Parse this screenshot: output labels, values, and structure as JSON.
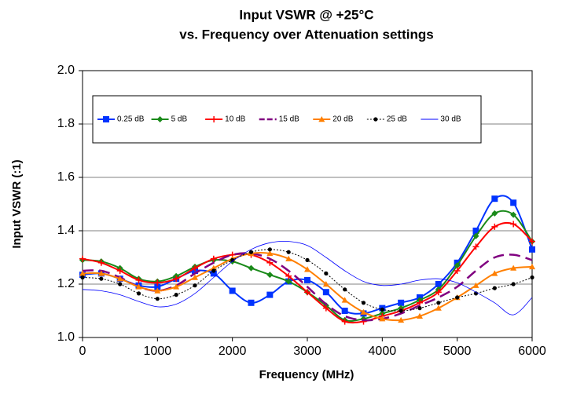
{
  "chart_data": {
    "type": "line",
    "title": "Input VSWR @ +25°C",
    "subtitle": "vs. Frequency over Attenuation settings",
    "x_label": "Frequency (MHz)",
    "y_label": "Input VSWR (:1)",
    "x": [
      0,
      250,
      500,
      750,
      1000,
      1250,
      1500,
      1750,
      2000,
      2250,
      2500,
      2750,
      3000,
      3250,
      3500,
      3750,
      4000,
      4250,
      4500,
      4750,
      5000,
      5250,
      5500,
      5750,
      6000
    ],
    "xlim": [
      0,
      6000
    ],
    "xticks": [
      0,
      1000,
      2000,
      3000,
      4000,
      5000,
      6000
    ],
    "ylim": [
      1,
      2
    ],
    "yticks": [
      {
        "value": 1,
        "label": "1.0"
      },
      {
        "value": 1.2,
        "label": "1.2"
      },
      {
        "value": 1.4,
        "label": "1.4"
      },
      {
        "value": 1.6,
        "label": "1.6"
      },
      {
        "value": 1.8,
        "label": "1.8"
      },
      {
        "value": 2,
        "label": "2.0"
      }
    ],
    "grid": true,
    "legend": "top-left",
    "series": [
      {
        "name": "0.25 dB",
        "color": "#0033ff",
        "marker": "square",
        "dash": "solid",
        "width": 2,
        "values": [
          1.235,
          1.24,
          1.22,
          1.195,
          1.19,
          1.22,
          1.25,
          1.24,
          1.175,
          1.13,
          1.16,
          1.21,
          1.215,
          1.17,
          1.1,
          1.09,
          1.11,
          1.13,
          1.15,
          1.2,
          1.28,
          1.4,
          1.52,
          1.505,
          1.33
        ]
      },
      {
        "name": "5 dB",
        "color": "#1a8a1a",
        "marker": "diamond",
        "dash": "solid",
        "width": 2,
        "values": [
          1.29,
          1.285,
          1.26,
          1.22,
          1.21,
          1.23,
          1.265,
          1.29,
          1.285,
          1.26,
          1.235,
          1.21,
          1.17,
          1.12,
          1.065,
          1.07,
          1.09,
          1.11,
          1.14,
          1.18,
          1.27,
          1.38,
          1.465,
          1.46,
          1.36
        ]
      },
      {
        "name": "10 dB",
        "color": "#ff0000",
        "marker": "plus",
        "dash": "solid",
        "width": 2,
        "values": [
          1.295,
          1.28,
          1.25,
          1.215,
          1.205,
          1.22,
          1.26,
          1.295,
          1.31,
          1.31,
          1.28,
          1.23,
          1.17,
          1.11,
          1.06,
          1.06,
          1.08,
          1.1,
          1.13,
          1.17,
          1.25,
          1.34,
          1.415,
          1.425,
          1.36
        ]
      },
      {
        "name": "15 dB",
        "color": "#800080",
        "marker": "none",
        "dash": "long",
        "width": 2.5,
        "values": [
          1.25,
          1.25,
          1.225,
          1.19,
          1.175,
          1.195,
          1.24,
          1.28,
          1.31,
          1.315,
          1.295,
          1.25,
          1.19,
          1.125,
          1.08,
          1.065,
          1.07,
          1.09,
          1.12,
          1.15,
          1.19,
          1.25,
          1.3,
          1.31,
          1.29
        ]
      },
      {
        "name": "20 dB",
        "color": "#ff7f00",
        "marker": "triangle",
        "dash": "solid",
        "width": 2,
        "values": [
          1.24,
          1.24,
          1.22,
          1.19,
          1.175,
          1.19,
          1.225,
          1.26,
          1.295,
          1.315,
          1.315,
          1.295,
          1.255,
          1.2,
          1.14,
          1.095,
          1.07,
          1.065,
          1.08,
          1.11,
          1.15,
          1.195,
          1.24,
          1.26,
          1.265
        ]
      },
      {
        "name": "25 dB",
        "color": "#000000",
        "marker": "circle",
        "dash": "dotted",
        "width": 1,
        "values": [
          1.225,
          1.22,
          1.2,
          1.165,
          1.145,
          1.16,
          1.195,
          1.25,
          1.29,
          1.32,
          1.33,
          1.32,
          1.29,
          1.24,
          1.18,
          1.13,
          1.105,
          1.1,
          1.11,
          1.13,
          1.15,
          1.165,
          1.185,
          1.2,
          1.225
        ]
      },
      {
        "name": "30 dB",
        "color": "#0000ff",
        "marker": "none",
        "dash": "solid",
        "width": 0.8,
        "values": [
          1.18,
          1.175,
          1.16,
          1.135,
          1.115,
          1.125,
          1.165,
          1.225,
          1.285,
          1.33,
          1.355,
          1.36,
          1.345,
          1.3,
          1.25,
          1.21,
          1.195,
          1.2,
          1.215,
          1.22,
          1.205,
          1.17,
          1.13,
          1.085,
          1.15
        ]
      }
    ]
  }
}
